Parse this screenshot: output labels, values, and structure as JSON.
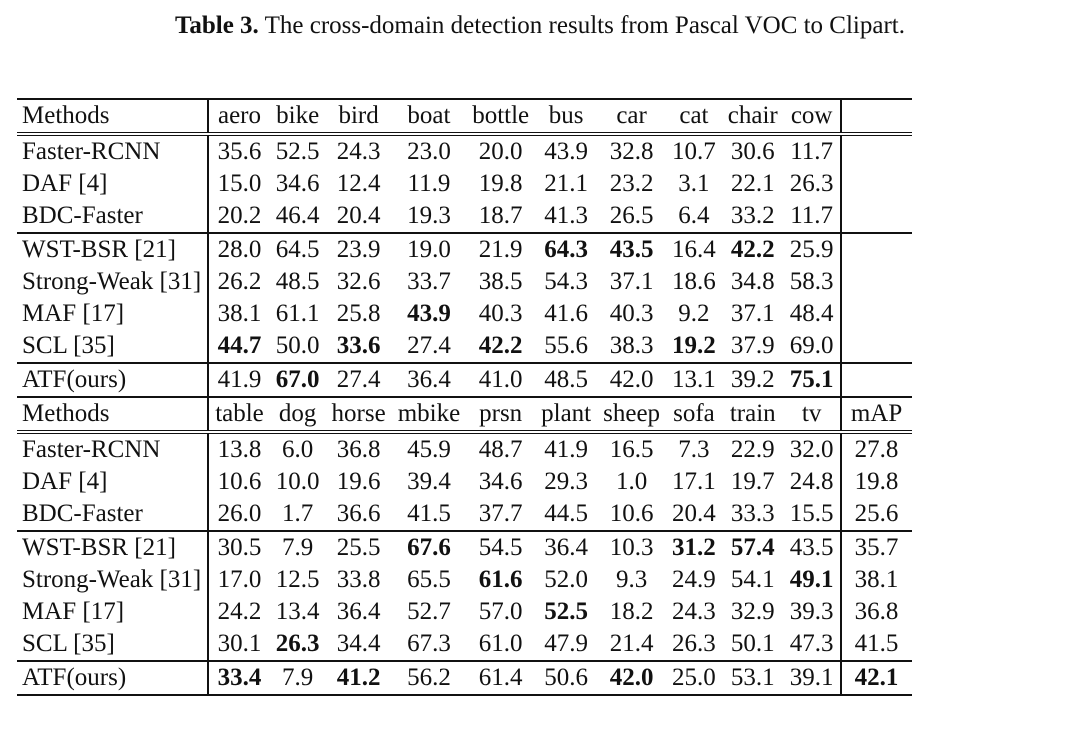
{
  "caption": {
    "label": "Table 3.",
    "text": " The cross-domain detection results from Pascal VOC to Clipart."
  },
  "table1": {
    "header": [
      "Methods",
      "aero",
      "bike",
      "bird",
      "boat",
      "bottle",
      "bus",
      "car",
      "cat",
      "chair",
      "cow",
      ""
    ],
    "rows": [
      {
        "method": "Faster-RCNN",
        "values": [
          "35.6",
          "52.5",
          "24.3",
          "23.0",
          "20.0",
          "43.9",
          "32.8",
          "10.7",
          "30.6",
          "11.7"
        ],
        "bold": [],
        "group_start": true
      },
      {
        "method": "DAF [4]",
        "values": [
          "15.0",
          "34.6",
          "12.4",
          "11.9",
          "19.8",
          "21.1",
          "23.2",
          "3.1",
          "22.1",
          "26.3"
        ],
        "bold": [],
        "group_start": false
      },
      {
        "method": "BDC-Faster",
        "values": [
          "20.2",
          "46.4",
          "20.4",
          "19.3",
          "18.7",
          "41.3",
          "26.5",
          "6.4",
          "33.2",
          "11.7"
        ],
        "bold": [],
        "group_start": false
      },
      {
        "method": "WST-BSR [21]",
        "values": [
          "28.0",
          "64.5",
          "23.9",
          "19.0",
          "21.9",
          "64.3",
          "43.5",
          "16.4",
          "42.2",
          "25.9"
        ],
        "bold": [
          5,
          6,
          8
        ],
        "group_start": true
      },
      {
        "method": "Strong-Weak [31]",
        "values": [
          "26.2",
          "48.5",
          "32.6",
          "33.7",
          "38.5",
          "54.3",
          "37.1",
          "18.6",
          "34.8",
          "58.3"
        ],
        "bold": [],
        "group_start": false
      },
      {
        "method": "MAF [17]",
        "values": [
          "38.1",
          "61.1",
          "25.8",
          "43.9",
          "40.3",
          "41.6",
          "40.3",
          "9.2",
          "37.1",
          "48.4"
        ],
        "bold": [
          3
        ],
        "group_start": false
      },
      {
        "method": "SCL [35]",
        "values": [
          "44.7",
          "50.0",
          "33.6",
          "27.4",
          "42.2",
          "55.6",
          "38.3",
          "19.2",
          "37.9",
          "69.0"
        ],
        "bold": [
          0,
          2,
          4,
          7
        ],
        "group_start": false
      },
      {
        "method": "ATF(ours)",
        "values": [
          "41.9",
          "67.0",
          "27.4",
          "36.4",
          "41.0",
          "48.5",
          "42.0",
          "13.1",
          "39.2",
          "75.1"
        ],
        "bold": [
          1,
          9
        ],
        "group_start": true
      }
    ]
  },
  "table2": {
    "header": [
      "Methods",
      "table",
      "dog",
      "horse",
      "mbike",
      "prsn",
      "plant",
      "sheep",
      "sofa",
      "train",
      "tv",
      "mAP"
    ],
    "rows": [
      {
        "method": "Faster-RCNN",
        "values": [
          "13.8",
          "6.0",
          "36.8",
          "45.9",
          "48.7",
          "41.9",
          "16.5",
          "7.3",
          "22.9",
          "32.0",
          "27.8"
        ],
        "bold": [],
        "group_start": true
      },
      {
        "method": "DAF [4]",
        "values": [
          "10.6",
          "10.0",
          "19.6",
          "39.4",
          "34.6",
          "29.3",
          "1.0",
          "17.1",
          "19.7",
          "24.8",
          "19.8"
        ],
        "bold": [],
        "group_start": false
      },
      {
        "method": "BDC-Faster",
        "values": [
          "26.0",
          "1.7",
          "36.6",
          "41.5",
          "37.7",
          "44.5",
          "10.6",
          "20.4",
          "33.3",
          "15.5",
          "25.6"
        ],
        "bold": [],
        "group_start": false
      },
      {
        "method": "WST-BSR [21]",
        "values": [
          "30.5",
          "7.9",
          "25.5",
          "67.6",
          "54.5",
          "36.4",
          "10.3",
          "31.2",
          "57.4",
          "43.5",
          "35.7"
        ],
        "bold": [
          3,
          7,
          8
        ],
        "group_start": true
      },
      {
        "method": "Strong-Weak [31]",
        "values": [
          "17.0",
          "12.5",
          "33.8",
          "65.5",
          "61.6",
          "52.0",
          "9.3",
          "24.9",
          "54.1",
          "49.1",
          "38.1"
        ],
        "bold": [
          4,
          9
        ],
        "group_start": false
      },
      {
        "method": "MAF [17]",
        "values": [
          "24.2",
          "13.4",
          "36.4",
          "52.7",
          "57.0",
          "52.5",
          "18.2",
          "24.3",
          "32.9",
          "39.3",
          "36.8"
        ],
        "bold": [
          5
        ],
        "group_start": false
      },
      {
        "method": "SCL [35]",
        "values": [
          "30.1",
          "26.3",
          "34.4",
          "67.3",
          "61.0",
          "47.9",
          "21.4",
          "26.3",
          "50.1",
          "47.3",
          "41.5"
        ],
        "bold": [
          1
        ],
        "group_start": false
      },
      {
        "method": "ATF(ours)",
        "values": [
          "33.4",
          "7.9",
          "41.2",
          "56.2",
          "61.4",
          "50.6",
          "42.0",
          "25.0",
          "53.1",
          "39.1",
          "42.1"
        ],
        "bold": [
          0,
          2,
          6,
          10
        ],
        "group_start": true
      }
    ]
  }
}
